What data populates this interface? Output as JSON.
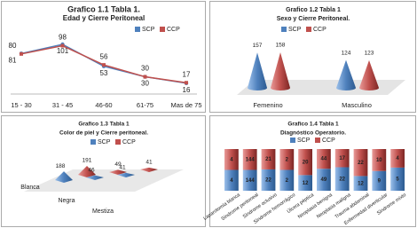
{
  "chart_data": [
    {
      "type": "line",
      "title": "Grafico 1.1 Tabla 1.",
      "subtitle": "Edad y Cierre Peritoneal",
      "categories": [
        "15 - 30",
        "31 - 45",
        "46-60",
        "61-75",
        "Mas de 75"
      ],
      "series": [
        {
          "name": "SCP",
          "color": "#4f81bd",
          "values": [
            81,
            101,
            53,
            30,
            16
          ]
        },
        {
          "name": "CCP",
          "color": "#c0504d",
          "values": [
            80,
            98,
            56,
            30,
            17
          ]
        }
      ]
    },
    {
      "type": "cone",
      "title": "Grafico 1.2 Tabla 1",
      "subtitle": "Sexo y Cierre Peritoneal.",
      "categories": [
        "Femenino",
        "Masculino"
      ],
      "series": [
        {
          "name": "SCP",
          "color": "#4f81bd",
          "values": [
            157,
            124
          ]
        },
        {
          "name": "CCP",
          "color": "#c0504d",
          "values": [
            158,
            123
          ]
        }
      ]
    },
    {
      "type": "pyramid",
      "title": "Grafico 1.3 Tabla 1",
      "subtitle": "Color de piel y Cierre peritoneal.",
      "categories": [
        "Blanca",
        "Negra",
        "Mestiza"
      ],
      "series": [
        {
          "name": "SCP",
          "color": "#4f81bd",
          "values": [
            188,
            46,
            41
          ]
        },
        {
          "name": "CCP",
          "color": "#c0504d",
          "values": [
            191,
            49,
            41
          ]
        }
      ]
    },
    {
      "type": "stacked_bar",
      "title": "Grafico 1.4 Tabla 1",
      "subtitle": "Diagnóstico Operatorio.",
      "categories": [
        "Laparotomía blanca",
        "Síndrome peritoneal",
        "Síndrome oclusivo",
        "Síndrome hemorrágico",
        "Úlcera péptica",
        "Neoplasia benigna",
        "Neoplasia maligna",
        "Trauma abdominal",
        "Enfermedad diverticular",
        "Síndrome mixto"
      ],
      "series": [
        {
          "name": "SCP",
          "color": "#4f81bd",
          "values": [
            4,
            144,
            22,
            2,
            12,
            49,
            22,
            12,
            9,
            5
          ]
        },
        {
          "name": "CCP",
          "color": "#c0504d",
          "values": [
            4,
            144,
            21,
            2,
            20,
            44,
            17,
            22,
            10,
            4
          ]
        }
      ]
    }
  ]
}
